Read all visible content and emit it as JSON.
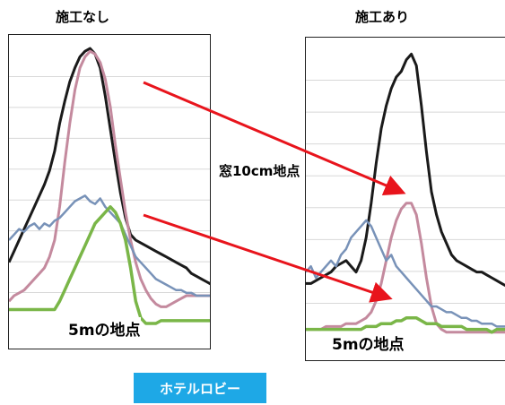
{
  "titles": {
    "left": "施工なし",
    "right": "施工あり"
  },
  "labels": {
    "window_point": "窓10cm地点",
    "five_m_left": "5mの地点",
    "five_m_right": "5mの地点"
  },
  "badge": {
    "text": "ホテルロビー",
    "color": "#1ea8e6"
  },
  "colors": {
    "black_series": "#1a1a1a",
    "pink_series": "#c48a9e",
    "blue_series": "#7892b8",
    "green_series": "#7ab648",
    "arrow": "#e8141c",
    "grid": "#d8d8d8"
  },
  "chart_data": [
    {
      "type": "line",
      "title": "施工なし",
      "x": [
        0,
        1,
        2,
        3,
        4,
        5,
        6,
        7,
        8,
        9,
        10,
        11,
        12,
        13,
        14,
        15,
        16,
        17,
        18,
        19,
        20,
        21,
        22,
        23,
        24,
        25,
        26,
        27,
        28,
        29,
        30,
        31,
        32,
        33,
        34,
        35,
        36,
        37,
        38,
        39,
        40
      ],
      "ylim": [
        0,
        100
      ],
      "grid": true,
      "annotations": [
        "5mの地点"
      ],
      "series": [
        {
          "values": [
            22,
            26,
            30,
            34,
            38,
            42,
            46,
            50,
            55,
            62,
            72,
            80,
            87,
            92,
            96,
            98,
            99,
            97,
            92,
            82,
            70,
            58,
            47,
            38,
            32,
            30,
            29,
            28,
            27,
            26,
            25,
            24,
            23,
            22,
            21,
            20,
            18,
            17,
            16,
            15,
            14
          ]
        },
        {
          "values": [
            8,
            10,
            11,
            12,
            14,
            16,
            18,
            20,
            24,
            30,
            42,
            58,
            72,
            84,
            92,
            96,
            98,
            97,
            94,
            88,
            78,
            64,
            52,
            40,
            30,
            22,
            16,
            12,
            9,
            7,
            6,
            6,
            7,
            8,
            9,
            10,
            10,
            10,
            10,
            10,
            10
          ]
        },
        {
          "values": [
            30,
            32,
            34,
            33,
            35,
            36,
            34,
            36,
            35,
            37,
            38,
            40,
            42,
            44,
            45,
            46,
            44,
            43,
            45,
            42,
            40,
            38,
            36,
            32,
            28,
            24,
            22,
            20,
            18,
            16,
            15,
            14,
            13,
            12,
            12,
            11,
            11,
            10,
            10,
            10,
            10
          ]
        },
        {
          "values": [
            5,
            5,
            5,
            5,
            5,
            5,
            5,
            5,
            5,
            5,
            8,
            12,
            16,
            20,
            24,
            28,
            32,
            36,
            38,
            40,
            42,
            40,
            36,
            30,
            20,
            8,
            2,
            0,
            0,
            0,
            1,
            1,
            1,
            1,
            1,
            1,
            1,
            1,
            1,
            1,
            1
          ]
        }
      ]
    },
    {
      "type": "line",
      "title": "施工あり",
      "x": [
        0,
        1,
        2,
        3,
        4,
        5,
        6,
        7,
        8,
        9,
        10,
        11,
        12,
        13,
        14,
        15,
        16,
        17,
        18,
        19,
        20,
        21,
        22,
        23,
        24,
        25,
        26,
        27,
        28,
        29,
        30,
        31,
        32,
        33,
        34,
        35,
        36,
        37,
        38,
        39,
        40
      ],
      "ylim": [
        0,
        100
      ],
      "grid": true,
      "annotations": [
        "窓10cm地点",
        "5mの地点"
      ],
      "series": [
        {
          "values": [
            18,
            18,
            19,
            20,
            21,
            22,
            24,
            25,
            26,
            24,
            22,
            26,
            34,
            46,
            60,
            72,
            80,
            86,
            90,
            92,
            96,
            98,
            94,
            80,
            64,
            50,
            42,
            36,
            32,
            28,
            26,
            25,
            24,
            23,
            22,
            22,
            21,
            20,
            19,
            18,
            17
          ]
        },
        {
          "values": [
            2,
            2,
            2,
            2,
            3,
            3,
            3,
            3,
            4,
            4,
            4,
            5,
            6,
            8,
            12,
            18,
            26,
            34,
            40,
            44,
            46,
            46,
            42,
            32,
            20,
            10,
            4,
            2,
            1,
            1,
            1,
            1,
            1,
            1,
            1,
            1,
            1,
            1,
            1,
            1,
            1
          ]
        },
        {
          "values": [
            22,
            24,
            20,
            22,
            24,
            26,
            24,
            28,
            30,
            34,
            36,
            38,
            40,
            38,
            34,
            30,
            26,
            28,
            24,
            22,
            20,
            18,
            16,
            14,
            12,
            10,
            10,
            9,
            8,
            8,
            7,
            6,
            6,
            5,
            5,
            4,
            4,
            4,
            3,
            3,
            3
          ]
        },
        {
          "values": [
            2,
            2,
            2,
            2,
            2,
            2,
            2,
            2,
            2,
            2,
            2,
            2,
            3,
            3,
            3,
            4,
            4,
            4,
            5,
            5,
            6,
            6,
            6,
            5,
            4,
            4,
            4,
            3,
            3,
            3,
            3,
            3,
            2,
            2,
            2,
            2,
            2,
            1,
            2,
            2,
            2
          ]
        }
      ]
    }
  ]
}
